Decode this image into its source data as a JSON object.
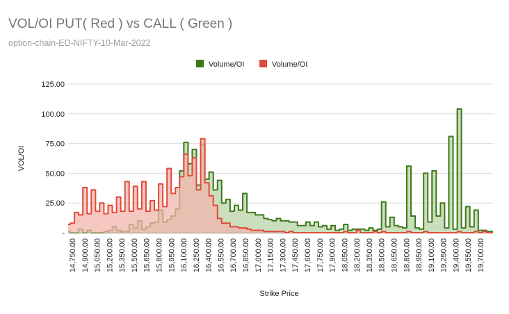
{
  "chart_data": {
    "type": "area",
    "title": "VOL/OI PUT( Red ) vs CALL ( Green )",
    "subtitle": "option-chain-ED-NIFTY-10-Mar-2022",
    "xlabel": "Strike Price",
    "ylabel": "VOL/OI",
    "ylim": [
      0,
      125
    ],
    "y_ticks": [
      {
        "value": 0,
        "label": "-"
      },
      {
        "value": 25,
        "label": "25.00"
      },
      {
        "value": 50,
        "label": "50.00"
      },
      {
        "value": 75,
        "label": "75.00"
      },
      {
        "value": 100,
        "label": "100.00"
      },
      {
        "value": 125,
        "label": "125.00"
      }
    ],
    "x_range": [
      14750,
      19800
    ],
    "x_tick_labels": [
      "14,750.00",
      "14,900.00",
      "15,050.00",
      "15,200.00",
      "15,350.00",
      "15,500.00",
      "15,650.00",
      "15,800.00",
      "15,950.00",
      "16,100.00",
      "16,250.00",
      "16,400.00",
      "16,550.00",
      "16,700.00",
      "16,850.00",
      "17,000.00",
      "17,150.00",
      "17,300.00",
      "17,450.00",
      "17,600.00",
      "17,750.00",
      "17,900.00",
      "18,050.00",
      "18,200.00",
      "18,350.00",
      "18,500.00",
      "18,650.00",
      "18,800.00",
      "18,950.00",
      "19,100.00",
      "19,250.00",
      "19,400.00",
      "19,550.00",
      "19,700.00"
    ],
    "legend_position": "top-center",
    "series": [
      {
        "name": "Volume/OI",
        "side": "CALL",
        "color": "#3d7a18",
        "fill": "#b9d3a8",
        "points": [
          [
            14750,
            1
          ],
          [
            14800,
            0
          ],
          [
            14850,
            0
          ],
          [
            14900,
            3
          ],
          [
            14950,
            0
          ],
          [
            15000,
            2
          ],
          [
            15050,
            0
          ],
          [
            15100,
            0
          ],
          [
            15150,
            0
          ],
          [
            15200,
            1
          ],
          [
            15250,
            2
          ],
          [
            15300,
            5
          ],
          [
            15350,
            2
          ],
          [
            15400,
            1
          ],
          [
            15450,
            1
          ],
          [
            15500,
            7
          ],
          [
            15550,
            4
          ],
          [
            15600,
            10
          ],
          [
            15650,
            3
          ],
          [
            15700,
            5
          ],
          [
            15750,
            8
          ],
          [
            15800,
            9
          ],
          [
            15850,
            19
          ],
          [
            15900,
            9
          ],
          [
            15950,
            11
          ],
          [
            16000,
            14
          ],
          [
            16050,
            20
          ],
          [
            16100,
            52
          ],
          [
            16150,
            76
          ],
          [
            16200,
            58
          ],
          [
            16250,
            70
          ],
          [
            16300,
            40
          ],
          [
            16350,
            74
          ],
          [
            16400,
            45
          ],
          [
            16450,
            51
          ],
          [
            16500,
            36
          ],
          [
            16550,
            44
          ],
          [
            16600,
            25
          ],
          [
            16650,
            28
          ],
          [
            16700,
            18
          ],
          [
            16750,
            23
          ],
          [
            16800,
            19
          ],
          [
            16850,
            33
          ],
          [
            16900,
            17
          ],
          [
            16950,
            17
          ],
          [
            17000,
            15
          ],
          [
            17050,
            15
          ],
          [
            17100,
            12
          ],
          [
            17150,
            11
          ],
          [
            17200,
            10
          ],
          [
            17250,
            12
          ],
          [
            17300,
            10
          ],
          [
            17350,
            10
          ],
          [
            17400,
            9
          ],
          [
            17450,
            9
          ],
          [
            17500,
            6
          ],
          [
            17550,
            6
          ],
          [
            17600,
            9
          ],
          [
            17650,
            6
          ],
          [
            17700,
            9
          ],
          [
            17750,
            5
          ],
          [
            17800,
            6
          ],
          [
            17850,
            3
          ],
          [
            17900,
            6
          ],
          [
            17950,
            2
          ],
          [
            18000,
            3
          ],
          [
            18050,
            7
          ],
          [
            18100,
            2
          ],
          [
            18150,
            3
          ],
          [
            18200,
            3
          ],
          [
            18250,
            3
          ],
          [
            18300,
            2
          ],
          [
            18350,
            4
          ],
          [
            18400,
            2
          ],
          [
            18450,
            3
          ],
          [
            18500,
            26
          ],
          [
            18550,
            5
          ],
          [
            18600,
            13
          ],
          [
            18650,
            6
          ],
          [
            18700,
            5
          ],
          [
            18750,
            4
          ],
          [
            18800,
            56
          ],
          [
            18850,
            14
          ],
          [
            18900,
            4
          ],
          [
            18950,
            3
          ],
          [
            19000,
            50
          ],
          [
            19050,
            9
          ],
          [
            19100,
            52
          ],
          [
            19150,
            14
          ],
          [
            19200,
            25
          ],
          [
            19250,
            4
          ],
          [
            19300,
            81
          ],
          [
            19350,
            3
          ],
          [
            19400,
            104
          ],
          [
            19450,
            4
          ],
          [
            19500,
            22
          ],
          [
            19550,
            5
          ],
          [
            19600,
            19
          ],
          [
            19650,
            2
          ],
          [
            19700,
            2
          ],
          [
            19750,
            1
          ]
        ]
      },
      {
        "name": "Volume/OI",
        "side": "PUT",
        "color": "#e04a3a",
        "fill": "#f2b6ac",
        "points": [
          [
            14750,
            7
          ],
          [
            14800,
            8
          ],
          [
            14850,
            17
          ],
          [
            14900,
            15
          ],
          [
            14950,
            38
          ],
          [
            15000,
            16
          ],
          [
            15050,
            36
          ],
          [
            15100,
            18
          ],
          [
            15150,
            25
          ],
          [
            15200,
            16
          ],
          [
            15250,
            23
          ],
          [
            15300,
            17
          ],
          [
            15350,
            30
          ],
          [
            15400,
            18
          ],
          [
            15450,
            43
          ],
          [
            15500,
            18
          ],
          [
            15550,
            39
          ],
          [
            15600,
            20
          ],
          [
            15650,
            43
          ],
          [
            15700,
            18
          ],
          [
            15750,
            27
          ],
          [
            15800,
            19
          ],
          [
            15850,
            41
          ],
          [
            15900,
            22
          ],
          [
            15950,
            54
          ],
          [
            16000,
            33
          ],
          [
            16050,
            38
          ],
          [
            16100,
            47
          ],
          [
            16150,
            66
          ],
          [
            16200,
            48
          ],
          [
            16250,
            63
          ],
          [
            16300,
            36
          ],
          [
            16350,
            79
          ],
          [
            16400,
            42
          ],
          [
            16450,
            31
          ],
          [
            16500,
            23
          ],
          [
            16550,
            12
          ],
          [
            16600,
            8
          ],
          [
            16650,
            8
          ],
          [
            16700,
            5
          ],
          [
            16750,
            5
          ],
          [
            16800,
            4
          ],
          [
            16850,
            4
          ],
          [
            16900,
            3
          ],
          [
            16950,
            2
          ],
          [
            17000,
            2
          ],
          [
            17050,
            2
          ],
          [
            17100,
            1
          ],
          [
            17150,
            1
          ],
          [
            17200,
            1
          ],
          [
            17250,
            1
          ],
          [
            17300,
            1
          ],
          [
            17350,
            0
          ],
          [
            17400,
            1
          ],
          [
            17450,
            0
          ],
          [
            17500,
            0
          ],
          [
            17550,
            0
          ],
          [
            17600,
            0
          ],
          [
            17650,
            0
          ],
          [
            17700,
            0
          ],
          [
            17750,
            0
          ],
          [
            17800,
            0
          ],
          [
            17850,
            0
          ],
          [
            17900,
            0
          ],
          [
            17950,
            0
          ],
          [
            18000,
            0
          ],
          [
            18050,
            1
          ],
          [
            18100,
            0
          ],
          [
            18150,
            0
          ],
          [
            18200,
            2
          ],
          [
            18250,
            0
          ],
          [
            18300,
            0
          ],
          [
            18350,
            0
          ],
          [
            18400,
            1
          ],
          [
            18450,
            0
          ],
          [
            18500,
            1
          ],
          [
            18550,
            0
          ],
          [
            18600,
            0
          ],
          [
            18650,
            0
          ],
          [
            18700,
            0
          ],
          [
            18750,
            0
          ],
          [
            18800,
            1
          ],
          [
            18850,
            0
          ],
          [
            18900,
            0
          ],
          [
            18950,
            0
          ],
          [
            19000,
            1
          ],
          [
            19050,
            0
          ],
          [
            19100,
            0
          ],
          [
            19150,
            0
          ],
          [
            19200,
            0
          ],
          [
            19250,
            0
          ],
          [
            19300,
            0
          ],
          [
            19350,
            0
          ],
          [
            19400,
            1
          ],
          [
            19450,
            0
          ],
          [
            19500,
            0
          ],
          [
            19550,
            0
          ],
          [
            19600,
            1
          ],
          [
            19650,
            0
          ],
          [
            19700,
            1
          ],
          [
            19750,
            0
          ]
        ]
      }
    ]
  }
}
